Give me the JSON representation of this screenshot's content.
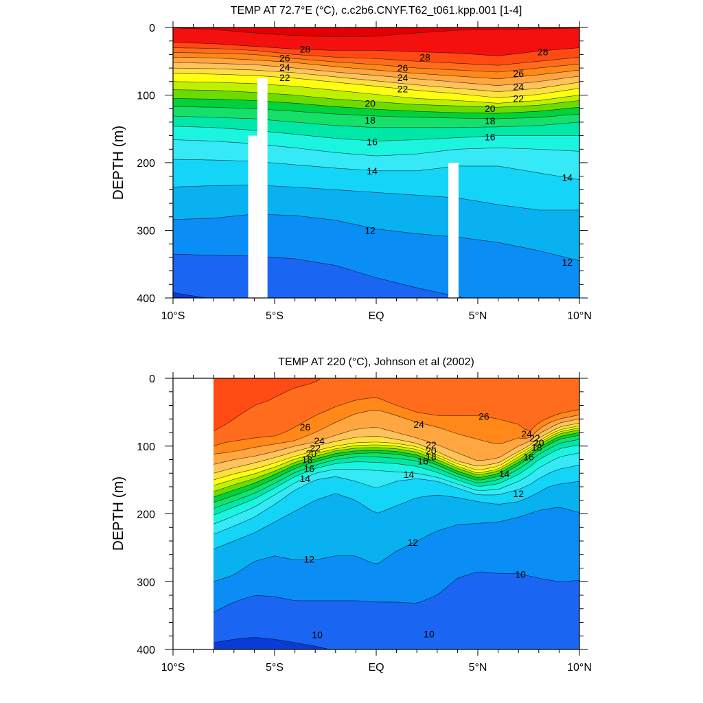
{
  "colors": {
    "scale": [
      "#0a3bd6",
      "#1a66f2",
      "#0a8ef5",
      "#0ab1f0",
      "#14d4f7",
      "#35e9f7",
      "#1bf5e0",
      "#00e8a8",
      "#14e06a",
      "#00d23c",
      "#6cdc00",
      "#bff000",
      "#ffff10",
      "#ffe040",
      "#ffc25c",
      "#ffa640",
      "#ff8818",
      "#ff6d1c",
      "#ff4a14",
      "#f51010",
      "#e00000"
    ]
  },
  "chart_data": [
    {
      "type": "contour",
      "title": "TEMP AT  72.7°E (°C), c.c2b6.CNYF.T62_t061.kpp.001 [1-4]",
      "xlabel": "",
      "ylabel": "DEPTH (m)",
      "xlim": [
        -10,
        10
      ],
      "ylim": [
        400,
        0
      ],
      "x_tick_labels": [
        "10°S",
        "5°S",
        "EQ",
        "5°N",
        "10°N"
      ],
      "x_ticks": [
        -10,
        -5,
        0,
        5,
        10
      ],
      "y_tick_labels": [
        "0",
        "100",
        "200",
        "300",
        "400"
      ],
      "y_ticks": [
        0,
        100,
        200,
        300,
        400
      ],
      "contour_interval": 1,
      "levels": [
        9,
        10,
        11,
        12,
        13,
        14,
        15,
        16,
        17,
        18,
        19,
        20,
        21,
        22,
        23,
        24,
        25,
        26,
        27,
        28,
        29
      ],
      "contour_labels": [
        {
          "text": "28",
          "x": -3.5,
          "y": 32
        },
        {
          "text": "28",
          "x": 2.4,
          "y": 44
        },
        {
          "text": "28",
          "x": 8.2,
          "y": 36
        },
        {
          "text": "26",
          "x": -4.5,
          "y": 45
        },
        {
          "text": "24",
          "x": -4.5,
          "y": 59
        },
        {
          "text": "22",
          "x": -4.5,
          "y": 74
        },
        {
          "text": "26",
          "x": 1.3,
          "y": 60
        },
        {
          "text": "24",
          "x": 1.3,
          "y": 74
        },
        {
          "text": "22",
          "x": 1.3,
          "y": 91
        },
        {
          "text": "26",
          "x": 7.0,
          "y": 68
        },
        {
          "text": "24",
          "x": 7.0,
          "y": 88
        },
        {
          "text": "22",
          "x": 7.0,
          "y": 105
        },
        {
          "text": "20",
          "x": -0.3,
          "y": 112
        },
        {
          "text": "18",
          "x": -0.3,
          "y": 137
        },
        {
          "text": "16",
          "x": -0.2,
          "y": 169
        },
        {
          "text": "20",
          "x": 5.6,
          "y": 120
        },
        {
          "text": "18",
          "x": 5.6,
          "y": 138
        },
        {
          "text": "16",
          "x": 5.6,
          "y": 162
        },
        {
          "text": "14",
          "x": -0.2,
          "y": 212
        },
        {
          "text": "14",
          "x": 9.4,
          "y": 222
        },
        {
          "text": "12",
          "x": -0.3,
          "y": 300
        },
        {
          "text": "12",
          "x": 9.4,
          "y": 347
        }
      ],
      "missing_columns": [
        {
          "x0": -6.3,
          "x1": -5.85,
          "depth_from": 160
        },
        {
          "x0": -5.85,
          "x1": -5.35,
          "depth_from": 75
        },
        {
          "x0": 3.55,
          "x1": 4.05,
          "depth_from": 200
        }
      ]
    },
    {
      "type": "contour",
      "title": "TEMP AT 220 (°C), Johnson et al (2002)",
      "xlabel": "",
      "ylabel": "DEPTH (m)",
      "xlim": [
        -10,
        10
      ],
      "ylim": [
        400,
        0
      ],
      "x_tick_labels": [
        "10°S",
        "5°S",
        "EQ",
        "5°N",
        "10°N"
      ],
      "x_ticks": [
        -10,
        -5,
        0,
        5,
        10
      ],
      "y_tick_labels": [
        "0",
        "100",
        "200",
        "300",
        "400"
      ],
      "y_ticks": [
        0,
        100,
        200,
        300,
        400
      ],
      "contour_interval": 1,
      "data_x_start": -8,
      "levels": [
        9,
        10,
        11,
        12,
        13,
        14,
        15,
        16,
        17,
        18,
        19,
        20,
        21,
        22,
        23,
        24,
        25,
        26,
        27
      ],
      "contour_labels": [
        {
          "text": "26",
          "x": -3.5,
          "y": 72
        },
        {
          "text": "24",
          "x": -2.8,
          "y": 92
        },
        {
          "text": "22",
          "x": -3.0,
          "y": 103
        },
        {
          "text": "20",
          "x": -3.2,
          "y": 111
        },
        {
          "text": "18",
          "x": -3.4,
          "y": 120
        },
        {
          "text": "16",
          "x": -3.3,
          "y": 133
        },
        {
          "text": "14",
          "x": -3.5,
          "y": 148
        },
        {
          "text": "24",
          "x": 2.1,
          "y": 68
        },
        {
          "text": "22",
          "x": 2.7,
          "y": 98
        },
        {
          "text": "20",
          "x": 2.7,
          "y": 107
        },
        {
          "text": "18",
          "x": 2.7,
          "y": 116
        },
        {
          "text": "16",
          "x": 2.3,
          "y": 122
        },
        {
          "text": "14",
          "x": 1.6,
          "y": 142
        },
        {
          "text": "26",
          "x": 5.3,
          "y": 56
        },
        {
          "text": "24",
          "x": 7.4,
          "y": 82
        },
        {
          "text": "22",
          "x": 7.8,
          "y": 88
        },
        {
          "text": "20",
          "x": 8.0,
          "y": 95
        },
        {
          "text": "18",
          "x": 7.9,
          "y": 102
        },
        {
          "text": "16",
          "x": 7.5,
          "y": 116
        },
        {
          "text": "14",
          "x": 6.3,
          "y": 141
        },
        {
          "text": "12",
          "x": 7.0,
          "y": 170
        },
        {
          "text": "12",
          "x": 1.8,
          "y": 242
        },
        {
          "text": "12",
          "x": -3.3,
          "y": 267
        },
        {
          "text": "10",
          "x": 7.1,
          "y": 289
        },
        {
          "text": "10",
          "x": -2.9,
          "y": 378
        },
        {
          "text": "10",
          "x": 2.6,
          "y": 377
        }
      ]
    }
  ]
}
